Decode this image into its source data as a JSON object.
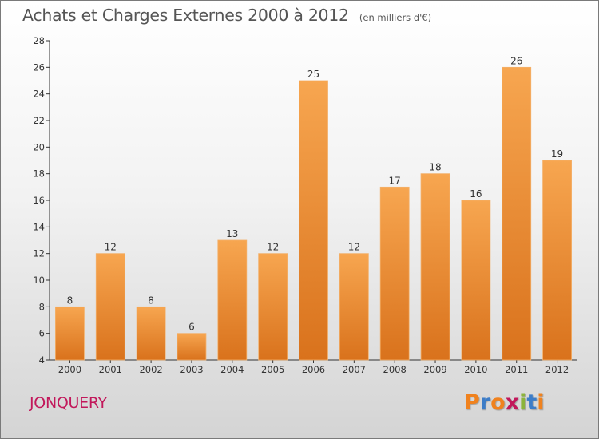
{
  "header": {
    "title": "Achats et Charges Externes 2000 à 2012",
    "subtitle": "(en milliers d'€)"
  },
  "commune": "JONQUERY",
  "logo": {
    "text": "Proxiti",
    "letter_colors": [
      "#f0821e",
      "#3d7dc8",
      "#f0821e",
      "#c2185b",
      "#8cb43c",
      "#3d7dc8",
      "#f0821e"
    ]
  },
  "colors": {
    "bar_top": "#f7a650",
    "bar_bottom": "#d9721c",
    "axis": "#333333",
    "commune_text": "#c2185b"
  },
  "chart_data": {
    "type": "bar",
    "categories": [
      "2000",
      "2001",
      "2002",
      "2003",
      "2004",
      "2005",
      "2006",
      "2007",
      "2008",
      "2009",
      "2010",
      "2011",
      "2012"
    ],
    "values": [
      8,
      12,
      8,
      6,
      13,
      12,
      25,
      12,
      17,
      18,
      16,
      26,
      19
    ],
    "value_labels": [
      "8",
      "12",
      "8",
      "6",
      "13",
      "12",
      "25",
      "12",
      "17",
      "18",
      "16",
      "26",
      "19"
    ],
    "ylim": [
      4,
      28
    ],
    "yticks": [
      4,
      6,
      8,
      10,
      12,
      14,
      16,
      18,
      20,
      22,
      24,
      26,
      28
    ],
    "ytick_labels": [
      "4",
      "6",
      "8",
      "10",
      "12",
      "14",
      "16",
      "18",
      "20",
      "22",
      "24",
      "26",
      "28"
    ],
    "title": "Achats et Charges Externes 2000 à 2012",
    "xlabel": "",
    "ylabel": "",
    "grid": false,
    "legend": "none"
  }
}
